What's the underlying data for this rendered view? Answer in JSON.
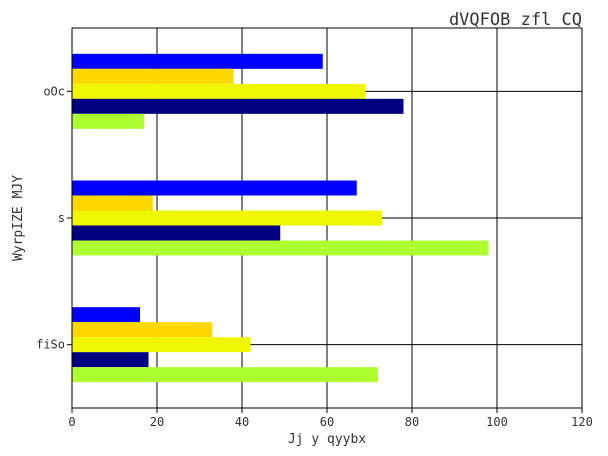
{
  "chart_data": {
    "type": "bar",
    "orientation": "horizontal",
    "title": "dVQFOB zfl CQ",
    "xlabel": "Jj y qyybx",
    "ylabel": "WyrpIZE MJY",
    "categories": [
      "fiSo",
      "s",
      "oOc"
    ],
    "xlim": [
      0,
      120
    ],
    "xticks": [
      0,
      20,
      40,
      60,
      80,
      100,
      120
    ],
    "grid": true,
    "legend": "none",
    "series": [
      {
        "color": "#0000ff",
        "values": [
          16,
          67,
          59
        ]
      },
      {
        "color": "#ffd700",
        "values": [
          33,
          19,
          38
        ]
      },
      {
        "color": "#f0f500",
        "values": [
          42,
          73,
          69
        ]
      },
      {
        "color": "#000080",
        "values": [
          18,
          49,
          78
        ]
      },
      {
        "color": "#adff2f",
        "values": [
          72,
          98,
          17
        ]
      }
    ]
  }
}
